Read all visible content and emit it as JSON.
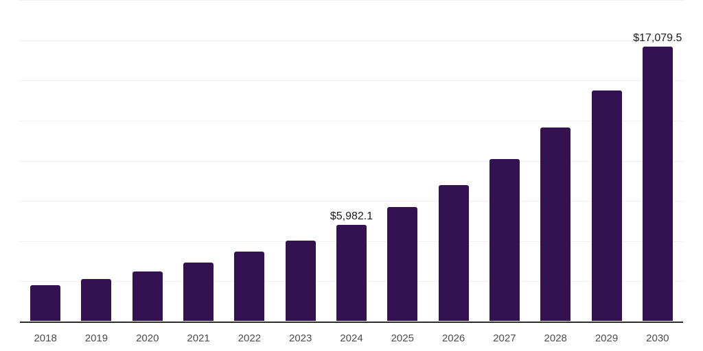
{
  "chart_data": {
    "type": "bar",
    "title": "",
    "xlabel": "",
    "ylabel": "",
    "categories": [
      "2018",
      "2019",
      "2020",
      "2021",
      "2022",
      "2023",
      "2024",
      "2025",
      "2026",
      "2027",
      "2028",
      "2029",
      "2030"
    ],
    "values": [
      2230,
      2610,
      3080,
      3640,
      4320,
      5010,
      5982.1,
      7120,
      8470,
      10100,
      12040,
      14340,
      17079.5
    ],
    "labeled_points": [
      {
        "category": "2024",
        "label": "$5,982.1"
      },
      {
        "category": "2030",
        "label": "$17,079.5"
      }
    ],
    "ylim": [
      0,
      20000
    ],
    "grid_step": 2500,
    "grid_on": true,
    "legend": "none",
    "y_axis_labels_visible": false,
    "colors": {
      "background": "#ffffff",
      "bar": "#341151",
      "gridline": "#f0f0f0",
      "axis_line": "#2b2b2b",
      "tick_label": "#4d4d4d",
      "data_label": "#1a1a1a"
    }
  }
}
